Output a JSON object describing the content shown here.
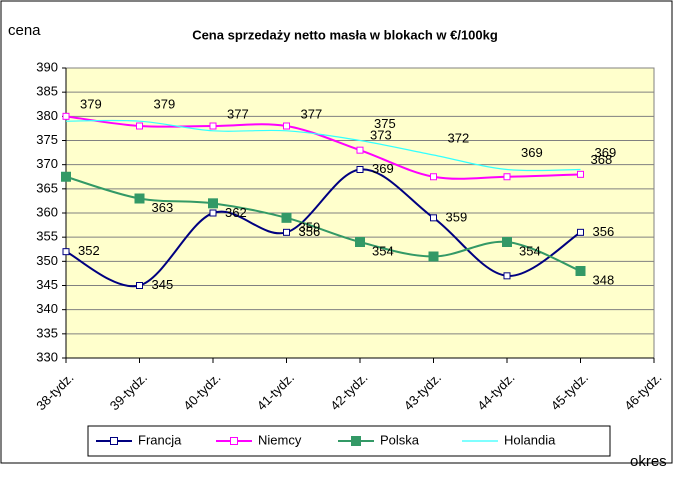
{
  "chart_data": {
    "type": "line",
    "title": "Cena sprzedaży netto masła w blokach w €/100kg",
    "y_label": "cena",
    "x_label": "okres",
    "categories": [
      "38-tydz.",
      "39-tydz.",
      "40-tydz.",
      "41-tydz.",
      "42-tydz.",
      "43-tydz.",
      "44-tydz.",
      "45-tydz.",
      "46-tydz."
    ],
    "series": [
      {
        "name": "Francja",
        "color": "#000080",
        "marker": "hollow-square",
        "values": [
          352,
          345,
          360,
          356,
          369,
          359,
          347,
          356,
          null
        ],
        "value_labels": [
          "352",
          "345",
          null,
          "356",
          "369",
          "359",
          null,
          "356",
          null
        ]
      },
      {
        "name": "Niemcy",
        "color": "#ff00ff",
        "marker": "hollow-square",
        "values": [
          380,
          378,
          378,
          378,
          373,
          367.5,
          367.5,
          368,
          null
        ],
        "value_labels": [
          null,
          null,
          null,
          null,
          "373",
          null,
          null,
          "368",
          null
        ]
      },
      {
        "name": "Polska",
        "color": "#339966",
        "marker": "filled-square",
        "values": [
          367.5,
          363,
          362,
          359,
          354,
          351,
          354,
          348,
          null
        ],
        "value_labels": [
          null,
          "363",
          "362",
          "359",
          "354",
          null,
          "354",
          "348",
          null
        ]
      },
      {
        "name": "Holandia",
        "color": "#33ffff",
        "marker": "none",
        "values": [
          379,
          379,
          377,
          377,
          375,
          372,
          369,
          369,
          null
        ],
        "value_labels": [
          "379",
          "379",
          "377",
          "377",
          "375",
          "372",
          "369",
          "369",
          null
        ]
      }
    ],
    "ylim": [
      330,
      390
    ],
    "yticks": [
      330,
      335,
      340,
      345,
      350,
      355,
      360,
      365,
      370,
      375,
      380,
      385,
      390
    ],
    "grid": true,
    "legend": "bottom",
    "plot_background": "#ffffcc"
  }
}
